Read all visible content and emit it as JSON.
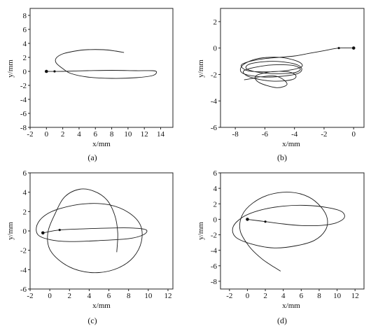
{
  "chart_data": [
    {
      "type": "line",
      "caption": "(a)",
      "xlabel": "x/mm",
      "ylabel": "y/mm",
      "xlim": [
        -2,
        15.5
      ],
      "ylim": [
        -8,
        9
      ],
      "xticks": [
        -2,
        0,
        2,
        4,
        6,
        8,
        10,
        12,
        14
      ],
      "yticks": [
        -8,
        -6,
        -4,
        -2,
        0,
        2,
        4,
        6,
        8
      ],
      "markers": [
        [
          0,
          0
        ],
        [
          1,
          0
        ]
      ],
      "series": [
        {
          "x": [
            0,
            2,
            5,
            8,
            11,
            13,
            13.5,
            13,
            11,
            8,
            5,
            3,
            2,
            1.2,
            1.2,
            2,
            3.5,
            5,
            7,
            8.5,
            9.5
          ],
          "y": [
            0,
            0,
            0.1,
            0.15,
            0.1,
            0.1,
            -0.1,
            -0.6,
            -0.9,
            -1.0,
            -0.8,
            -0.3,
            0.4,
            1.2,
            1.9,
            2.5,
            2.9,
            3.1,
            3.1,
            2.9,
            2.7
          ]
        }
      ]
    },
    {
      "type": "line",
      "caption": "(b)",
      "xlabel": "x/mm",
      "ylabel": "y/mm",
      "xlim": [
        -9,
        0.7
      ],
      "ylim": [
        -6,
        3
      ],
      "xticks": [
        -8,
        -6,
        -4,
        -2,
        0
      ],
      "yticks": [
        -6,
        -4,
        -2,
        0,
        2
      ],
      "markers": [
        [
          0,
          0
        ],
        [
          -1,
          0
        ]
      ],
      "series": [
        {
          "x": [
            0,
            -1,
            -2,
            -3,
            -4,
            -5,
            -6,
            -7,
            -7.6,
            -7.2,
            -6,
            -4.5,
            -3.5,
            -3.8,
            -5,
            -6.5,
            -7.5,
            -7.5,
            -6,
            -4,
            -3.5,
            -4,
            -5.5,
            -7,
            -7.2,
            -6,
            -4.2,
            -3.6,
            -4.2,
            -5.8,
            -7.4,
            -7,
            -5.5,
            -4.2,
            -3.9,
            -4.4,
            -5.6,
            -6.6,
            -6.4,
            -5.2,
            -4.5,
            -5.4,
            -7.4
          ],
          "y": [
            0,
            0,
            -0.2,
            -0.4,
            -0.6,
            -0.7,
            -0.8,
            -1.0,
            -1.3,
            -1.7,
            -1.8,
            -1.7,
            -1.4,
            -1.0,
            -0.7,
            -0.8,
            -1.3,
            -1.9,
            -2.2,
            -2.0,
            -1.6,
            -1.2,
            -1.0,
            -1.2,
            -1.6,
            -1.9,
            -1.9,
            -1.6,
            -1.3,
            -1.3,
            -1.7,
            -2.2,
            -2.5,
            -2.4,
            -2.1,
            -1.8,
            -1.8,
            -2.1,
            -2.6,
            -3.0,
            -2.7,
            -2.1,
            -2.4
          ]
        }
      ]
    },
    {
      "type": "line",
      "caption": "(c)",
      "xlabel": "x/mm",
      "ylabel": "y/mm",
      "xlim": [
        -2,
        12.5
      ],
      "ylim": [
        -6,
        6
      ],
      "xticks": [
        -2,
        0,
        2,
        4,
        6,
        8,
        10,
        12
      ],
      "yticks": [
        -6,
        -4,
        -2,
        0,
        2,
        4,
        6
      ],
      "markers": [
        [
          -0.7,
          -0.2
        ],
        [
          1,
          0.1
        ]
      ],
      "series": [
        {
          "x": [
            -0.7,
            1,
            3,
            6,
            8.5,
            9.8,
            9.5,
            8,
            5,
            2,
            0,
            -1.2,
            -1.3,
            -0.5,
            1,
            3.5,
            6,
            8,
            9.2,
            9.3,
            8.5,
            7,
            5,
            3,
            1.3,
            0,
            -0.2,
            0.5,
            1.5,
            3,
            4.5,
            5.8,
            6.6,
            6.9,
            6.8
          ],
          "y": [
            -0.2,
            0.1,
            0.2,
            0.3,
            0.3,
            0.1,
            -0.4,
            -0.8,
            -1.0,
            -1.1,
            -0.9,
            -0.4,
            0.6,
            1.6,
            2.3,
            2.8,
            2.7,
            1.9,
            0.6,
            -1.1,
            -2.7,
            -3.8,
            -4.3,
            -4.1,
            -3.3,
            -1.9,
            -0.2,
            1.7,
            3.5,
            4.3,
            4.1,
            3.2,
            1.6,
            -0.2,
            -2.2
          ]
        }
      ]
    },
    {
      "type": "line",
      "caption": "(d)",
      "xlabel": "x/mm",
      "ylabel": "y/mm",
      "xlim": [
        -3,
        13
      ],
      "ylim": [
        -9,
        6
      ],
      "xticks": [
        -2,
        0,
        2,
        4,
        6,
        8,
        10,
        12
      ],
      "yticks": [
        -8,
        -6,
        -4,
        -2,
        0,
        2,
        4,
        6
      ],
      "markers": [
        [
          0,
          0
        ],
        [
          2,
          -0.3
        ]
      ],
      "series": [
        {
          "x": [
            0,
            2,
            4,
            6,
            8,
            9.8,
            10.8,
            10.5,
            9,
            6.5,
            4,
            1.5,
            -0.5,
            -1.6,
            -1.3,
            0.5,
            3,
            5.5,
            7.5,
            8.7,
            8.9,
            8.2,
            6.8,
            4.8,
            2.5,
            0.6,
            -0.6,
            -0.8,
            0.2,
            1.5,
            2.6,
            3.3,
            3.7
          ],
          "y": [
            0,
            -0.3,
            -0.6,
            -0.8,
            -0.8,
            -0.5,
            0.2,
            1.0,
            1.5,
            1.8,
            1.7,
            1.2,
            0.3,
            -1.0,
            -2.3,
            -3.2,
            -3.7,
            -3.4,
            -2.7,
            -1.4,
            0.1,
            1.6,
            2.9,
            3.5,
            3.2,
            2.1,
            0.5,
            -1.5,
            -3.5,
            -5.0,
            -5.9,
            -6.4,
            -6.7
          ]
        }
      ]
    }
  ]
}
